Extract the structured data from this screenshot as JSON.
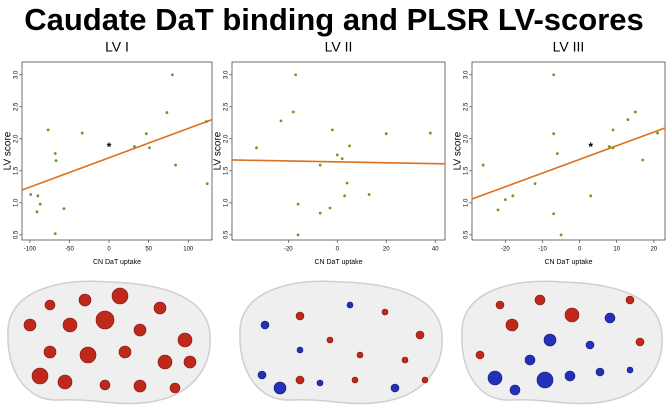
{
  "title": "Caudate DaT binding and PLSR LV-scores",
  "chart_data": [
    {
      "type": "scatter",
      "title": "LV I",
      "x_label": "CN DaT uptake",
      "y_label": "LV score",
      "color": "#6a9a1f",
      "x": [
        -99,
        -90,
        -91,
        -87,
        -77,
        -68,
        -67,
        -68,
        -57,
        -34,
        32,
        47,
        51,
        73,
        80,
        84,
        123,
        124
      ],
      "y": [
        1.13,
        1.11,
        0.86,
        0.98,
        2.14,
        1.77,
        1.66,
        0.52,
        0.91,
        2.09,
        1.88,
        2.08,
        1.86,
        2.41,
        3.0,
        1.59,
        2.27,
        1.3
      ],
      "fit": {
        "x": [
          -110,
          130
        ],
        "y": [
          1.2,
          2.3
        ],
        "color": "#e0701e"
      },
      "annotations": [
        {
          "text": "*",
          "x": 0,
          "y": 1.91
        }
      ],
      "xlim": [
        -110,
        130
      ],
      "xticks": [
        -100,
        -50,
        0,
        50,
        100
      ],
      "ylim": [
        0.42,
        3.2
      ],
      "yticks": [
        0.5,
        {
          "value": 1.0,
          "label": "1.0"
        },
        1.5,
        {
          "value": 2.0,
          "label": "2.0"
        },
        2.5,
        {
          "value": 3.0,
          "label": "3.0"
        }
      ]
    },
    {
      "type": "scatter",
      "title": "LV II",
      "x_label": "CN DaT uptake",
      "y_label": "LV score",
      "color": "#6a9a1f",
      "x": [
        -33,
        -23,
        -18,
        -17,
        -16,
        -16,
        -7,
        -7,
        -3,
        -2,
        0,
        2,
        3,
        4,
        5,
        13,
        20,
        38
      ],
      "y": [
        1.86,
        2.28,
        2.42,
        3.0,
        0.98,
        0.5,
        1.59,
        0.84,
        0.92,
        2.14,
        1.75,
        1.69,
        1.11,
        1.31,
        1.89,
        1.13,
        2.08,
        2.09
      ],
      "fit": {
        "x": [
          -43,
          44
        ],
        "y": [
          1.67,
          1.61
        ],
        "color": "#e0701e"
      },
      "xlim": [
        -43,
        44
      ],
      "xticks": [
        -20,
        0,
        20,
        40
      ],
      "ylim": [
        0.42,
        3.2
      ],
      "yticks": [
        0.5,
        {
          "value": 1.0,
          "label": "1.0"
        },
        1.5,
        {
          "value": 2.0,
          "label": "2.0"
        },
        2.5,
        {
          "value": 3.0,
          "label": "3.0"
        }
      ]
    },
    {
      "type": "scatter",
      "title": "LV III",
      "x_label": "CN DaT uptake",
      "y_label": "LV score",
      "color": "#6a9a1f",
      "x": [
        -26,
        -22,
        -20,
        -18,
        -12,
        -7,
        -7,
        -7,
        -6,
        -5,
        3,
        8,
        9,
        9,
        13,
        15,
        17,
        21
      ],
      "y": [
        1.59,
        0.89,
        1.05,
        1.11,
        1.3,
        2.08,
        3.0,
        0.83,
        1.77,
        0.5,
        1.11,
        1.88,
        1.86,
        2.14,
        2.3,
        2.42,
        1.67,
        2.09
      ],
      "fit": {
        "x": [
          -29,
          23
        ],
        "y": [
          1.06,
          2.17
        ],
        "color": "#e0701e"
      },
      "annotations": [
        {
          "text": "*",
          "x": 3,
          "y": 1.91
        }
      ],
      "xlim": [
        -29,
        23
      ],
      "xticks": [
        -20,
        -10,
        0,
        10,
        20
      ],
      "ylim": [
        0.42,
        3.2
      ],
      "yticks": [
        0.5,
        {
          "value": 1.0,
          "label": "1.0"
        },
        1.5,
        {
          "value": 2.0,
          "label": "2.0"
        },
        2.5,
        {
          "value": 3.0,
          "label": "3.0"
        }
      ]
    }
  ]
}
